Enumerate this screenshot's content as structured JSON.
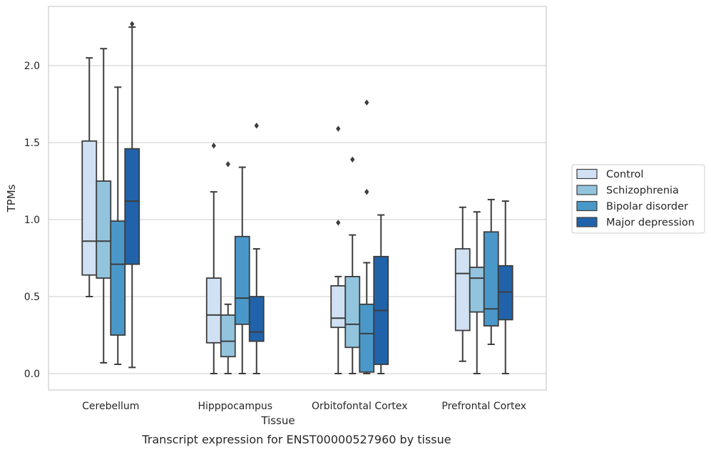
{
  "chart_data": {
    "type": "box",
    "title": "",
    "caption": "Transcript expression for ENST00000527960 by tissue",
    "xlabel": "Tissue",
    "ylabel": "TPMs",
    "ylim": [
      -0.11,
      2.39
    ],
    "yticks": [
      "0.0",
      "0.5",
      "1.0",
      "1.5",
      "2.0"
    ],
    "ytick_values": [
      0,
      0.5,
      1.0,
      1.5,
      2.0
    ],
    "grid": "horizontal",
    "legend_position": "outside-right",
    "categories": [
      "Cerebellum",
      "Hipppocampus",
      "Orbitofontal Cortex",
      "Prefrontal Cortex"
    ],
    "series": [
      {
        "name": "Control",
        "color": "#cfe1f2",
        "boxes": [
          {
            "whisker_low": 0.5,
            "q1": 0.64,
            "median": 0.86,
            "q3": 1.51,
            "whisker_high": 2.05,
            "outliers": []
          },
          {
            "whisker_low": 0.0,
            "q1": 0.2,
            "median": 0.38,
            "q3": 0.62,
            "whisker_high": 1.18,
            "outliers": [
              1.48
            ]
          },
          {
            "whisker_low": 0.0,
            "q1": 0.3,
            "median": 0.36,
            "q3": 0.57,
            "whisker_high": 0.63,
            "outliers": [
              0.98,
              1.59
            ]
          },
          {
            "whisker_low": 0.08,
            "q1": 0.28,
            "median": 0.65,
            "q3": 0.81,
            "whisker_high": 1.08,
            "outliers": []
          }
        ]
      },
      {
        "name": "Schizophrenia",
        "color": "#93c4de",
        "boxes": [
          {
            "whisker_low": 0.07,
            "q1": 0.62,
            "median": 0.86,
            "q3": 1.25,
            "whisker_high": 2.11,
            "outliers": []
          },
          {
            "whisker_low": 0.0,
            "q1": 0.11,
            "median": 0.21,
            "q3": 0.38,
            "whisker_high": 0.45,
            "outliers": [
              1.36
            ]
          },
          {
            "whisker_low": 0.0,
            "q1": 0.17,
            "median": 0.32,
            "q3": 0.63,
            "whisker_high": 0.9,
            "outliers": [
              1.39
            ]
          },
          {
            "whisker_low": 0.0,
            "q1": 0.4,
            "median": 0.62,
            "q3": 0.69,
            "whisker_high": 1.05,
            "outliers": []
          }
        ]
      },
      {
        "name": "Bipolar disorder",
        "color": "#4a98c9",
        "boxes": [
          {
            "whisker_low": 0.06,
            "q1": 0.25,
            "median": 0.71,
            "q3": 0.99,
            "whisker_high": 1.86,
            "outliers": []
          },
          {
            "whisker_low": 0.0,
            "q1": 0.32,
            "median": 0.49,
            "q3": 0.89,
            "whisker_high": 1.34,
            "outliers": []
          },
          {
            "whisker_low": 0.0,
            "q1": 0.01,
            "median": 0.26,
            "q3": 0.45,
            "whisker_high": 0.72,
            "outliers": [
              1.18,
              1.76
            ]
          },
          {
            "whisker_low": 0.19,
            "q1": 0.31,
            "median": 0.42,
            "q3": 0.92,
            "whisker_high": 1.13,
            "outliers": []
          }
        ]
      },
      {
        "name": "Major depression",
        "color": "#2163aa",
        "boxes": [
          {
            "whisker_low": 0.04,
            "q1": 0.71,
            "median": 1.12,
            "q3": 1.46,
            "whisker_high": 2.25,
            "outliers": [
              2.27
            ]
          },
          {
            "whisker_low": 0.0,
            "q1": 0.21,
            "median": 0.27,
            "q3": 0.5,
            "whisker_high": 0.81,
            "outliers": [
              1.61
            ]
          },
          {
            "whisker_low": 0.0,
            "q1": 0.06,
            "median": 0.41,
            "q3": 0.76,
            "whisker_high": 1.03,
            "outliers": []
          },
          {
            "whisker_low": 0.0,
            "q1": 0.35,
            "median": 0.53,
            "q3": 0.7,
            "whisker_high": 1.12,
            "outliers": []
          }
        ]
      }
    ]
  }
}
